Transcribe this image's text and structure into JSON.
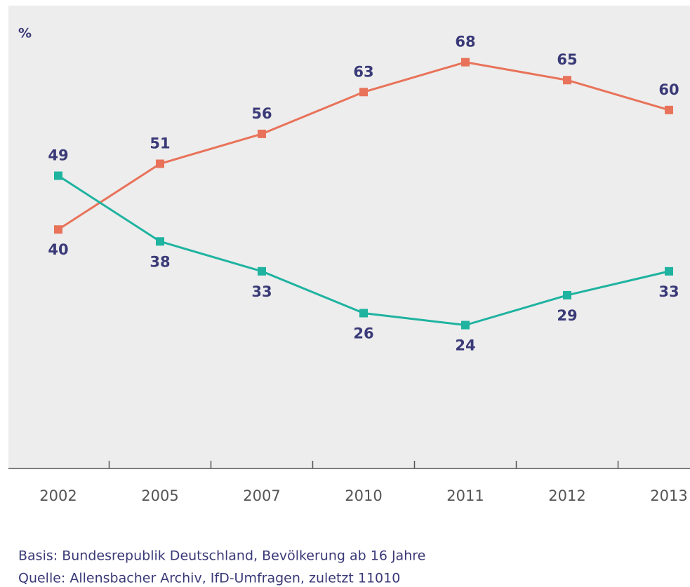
{
  "chart_data": {
    "type": "line",
    "y_label": "%",
    "categories": [
      "2002",
      "2005",
      "2007",
      "2010",
      "2011",
      "2012",
      "2013"
    ],
    "series": [
      {
        "color": "#e8735a",
        "values": [
          40,
          51,
          56,
          63,
          68,
          65,
          60
        ]
      },
      {
        "color": "#1fb3a0",
        "values": [
          49,
          38,
          33,
          26,
          24,
          29,
          33
        ]
      }
    ],
    "ylim": [
      0,
      77
    ],
    "notes": [
      "Basis: Bundesrepublik Deutschland, Bevölkerung ab 16 Jahre",
      "Quelle: Allensbacher Archiv, IfD-Umfragen, zuletzt 11010"
    ]
  }
}
